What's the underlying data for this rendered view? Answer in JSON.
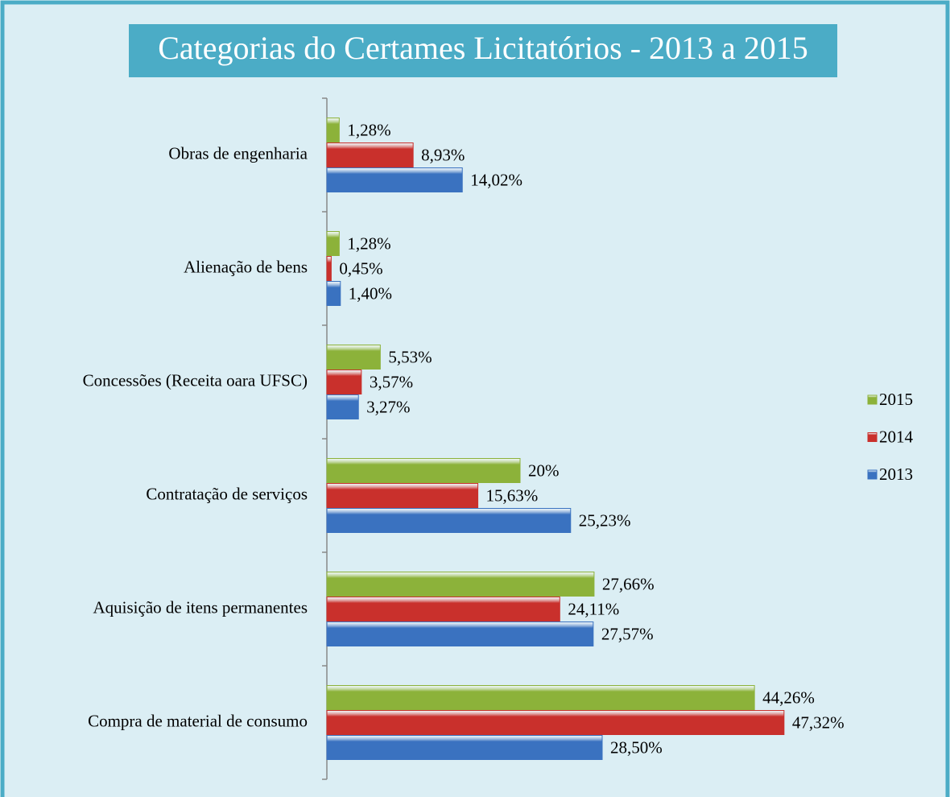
{
  "chart_data": {
    "type": "bar",
    "orientation": "horizontal",
    "title": "Categorias do Certames Licitatórios - 2013 a 2015",
    "categories": [
      "Obras de engenharia",
      "Alienação de bens",
      "Concessões (Receita oara UFSC)",
      "Contratação de serviços",
      "Aquisição de itens permanentes",
      "Compra de material de consumo"
    ],
    "series": [
      {
        "name": "2015",
        "color": "#8cb23a",
        "values": [
          1.28,
          1.28,
          5.53,
          20,
          27.66,
          44.26
        ],
        "value_labels": [
          "1,28%",
          "1,28%",
          "5,53%",
          "20%",
          "27,66%",
          "44,26%"
        ]
      },
      {
        "name": "2014",
        "color": "#c9302c",
        "values": [
          8.93,
          0.45,
          3.57,
          15.63,
          24.11,
          47.32
        ],
        "value_labels": [
          "8,93%",
          "0,45%",
          "3,57%",
          "15,63%",
          "24,11%",
          "47,32%"
        ]
      },
      {
        "name": "2013",
        "color": "#3a72c0",
        "values": [
          14.02,
          1.4,
          3.27,
          25.23,
          27.57,
          28.5
        ],
        "value_labels": [
          "14,02%",
          "1,40%",
          "3,27%",
          "25,23%",
          "27,57%",
          "28,50%"
        ]
      }
    ],
    "xlim": [
      0,
      50
    ],
    "legend": "right"
  }
}
